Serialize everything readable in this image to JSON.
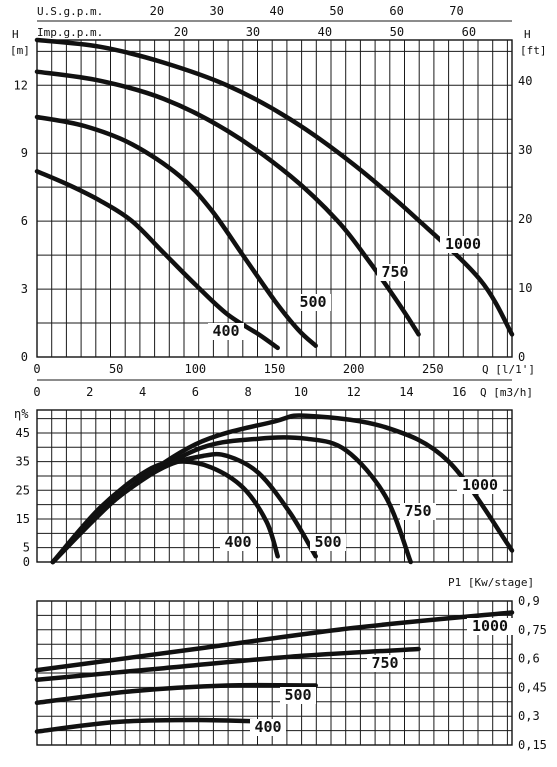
{
  "chart_data": [
    {
      "type": "line",
      "title": "",
      "xlabel": "Q [l/1']",
      "ylabel": "H [m]",
      "ylabel_right": "H [ft]",
      "xlim": [
        0,
        300
      ],
      "ylim": [
        0,
        14
      ],
      "x_ticks": [
        "0",
        "50",
        "100",
        "150",
        "200",
        "250"
      ],
      "y_ticks": [
        "0",
        "3",
        "6",
        "9",
        "12"
      ],
      "y_right_ticks": [
        "0",
        "10",
        "20",
        "30",
        "40"
      ],
      "secondary_x_axes": [
        {
          "label": "Q [m3/h]",
          "ticks": [
            "0",
            "2",
            "4",
            "6",
            "8",
            "10",
            "12",
            "14",
            "16"
          ]
        },
        {
          "label": "U.S.g.p.m.",
          "ticks": [
            "20",
            "30",
            "40",
            "50",
            "60",
            "70"
          ]
        },
        {
          "label": "Imp.g.p.m.",
          "ticks": [
            "20",
            "30",
            "40",
            "50",
            "60"
          ]
        }
      ],
      "series": [
        {
          "name": "400",
          "x": [
            0,
            20,
            40,
            60,
            80,
            100,
            120,
            140,
            152
          ],
          "y": [
            8.2,
            7.6,
            6.9,
            6.0,
            4.6,
            3.2,
            1.9,
            1.0,
            0.4
          ]
        },
        {
          "name": "500",
          "x": [
            0,
            30,
            60,
            90,
            110,
            130,
            150,
            165,
            176
          ],
          "y": [
            10.6,
            10.2,
            9.4,
            8.0,
            6.5,
            4.5,
            2.5,
            1.2,
            0.5
          ]
        },
        {
          "name": "750",
          "x": [
            0,
            40,
            80,
            120,
            160,
            190,
            210,
            230,
            241
          ],
          "y": [
            12.6,
            12.2,
            11.4,
            10.0,
            8.0,
            6.0,
            4.2,
            2.2,
            1.0
          ]
        },
        {
          "name": "1000",
          "x": [
            0,
            40,
            80,
            120,
            160,
            200,
            240,
            280,
            300
          ],
          "y": [
            14.0,
            13.7,
            13.0,
            12.0,
            10.5,
            8.5,
            6.1,
            3.4,
            1.0
          ]
        }
      ],
      "labels": [
        "400",
        "500",
        "750",
        "1000"
      ],
      "grid": true
    },
    {
      "type": "line",
      "title": "",
      "xlabel": "",
      "ylabel": "η%",
      "xlim": [
        0,
        300
      ],
      "ylim": [
        0,
        53
      ],
      "y_ticks": [
        "0",
        "5",
        "15",
        "25",
        "35",
        "45"
      ],
      "series": [
        {
          "name": "400",
          "x": [
            10,
            40,
            70,
            90,
            110,
            130,
            145,
            152
          ],
          "y": [
            0,
            19,
            32,
            35,
            33,
            26,
            14,
            2
          ]
        },
        {
          "name": "500",
          "x": [
            10,
            50,
            80,
            105,
            120,
            140,
            160,
            176
          ],
          "y": [
            0,
            22,
            33,
            37,
            37,
            31,
            17,
            2
          ]
        },
        {
          "name": "750",
          "x": [
            10,
            50,
            100,
            140,
            170,
            195,
            220,
            236
          ],
          "y": [
            0,
            22,
            39,
            43,
            43,
            39,
            23,
            0
          ]
        },
        {
          "name": "1000",
          "x": [
            10,
            50,
            100,
            150,
            170,
            220,
            260,
            300
          ],
          "y": [
            0,
            22,
            41,
            49,
            51,
            47,
            35,
            4
          ]
        }
      ],
      "labels": [
        "400",
        "500",
        "750",
        "1000"
      ],
      "grid": true
    },
    {
      "type": "line",
      "title": "",
      "xlabel": "",
      "ylabel": "P1 [Kw/stage]",
      "xlim": [
        0,
        300
      ],
      "ylim": [
        0.15,
        0.9
      ],
      "y_ticks": [
        "0,15",
        "0,3",
        "0,45",
        "0,6",
        "0,75",
        "0,9"
      ],
      "series": [
        {
          "name": "400",
          "x": [
            0,
            50,
            100,
            152
          ],
          "y": [
            0.22,
            0.27,
            0.28,
            0.27
          ]
        },
        {
          "name": "500",
          "x": [
            0,
            60,
            120,
            176
          ],
          "y": [
            0.37,
            0.43,
            0.46,
            0.46
          ]
        },
        {
          "name": "750",
          "x": [
            0,
            80,
            160,
            241
          ],
          "y": [
            0.49,
            0.55,
            0.61,
            0.65
          ]
        },
        {
          "name": "1000",
          "x": [
            0,
            100,
            200,
            300
          ],
          "y": [
            0.54,
            0.65,
            0.76,
            0.84
          ]
        }
      ],
      "labels": [
        "400",
        "500",
        "750",
        "1000"
      ],
      "grid": true
    }
  ]
}
